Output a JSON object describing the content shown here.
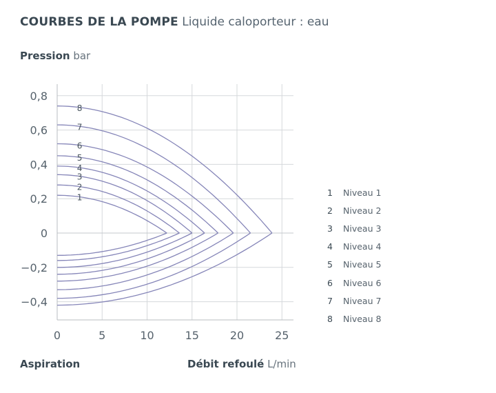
{
  "header": {
    "title_bold": "COURBES DE LA POMPE",
    "title_rest": "Liquide caloporteur : eau",
    "ylabel_bold": "Pression",
    "ylabel_unit": "bar",
    "aspiration": "Aspiration",
    "xlabel_bold": "Débit refoulé",
    "xlabel_unit": "L/min"
  },
  "legend": [
    {
      "num": "1",
      "label": "Niveau 1"
    },
    {
      "num": "2",
      "label": "Niveau 2"
    },
    {
      "num": "3",
      "label": "Niveau 3"
    },
    {
      "num": "4",
      "label": "Niveau 4"
    },
    {
      "num": "5",
      "label": "Niveau 5"
    },
    {
      "num": "6",
      "label": "Niveau 6"
    },
    {
      "num": "7",
      "label": "Niveau 7"
    },
    {
      "num": "8",
      "label": "Niveau 8"
    }
  ],
  "chart_data": {
    "type": "line",
    "title": "COURBES DE LA POMPE Liquide caloporteur : eau",
    "xlabel": "Débit refoulé L/min",
    "ylabel": "Pression bar",
    "xlim": [
      0,
      26
    ],
    "ylim": [
      -0.5,
      0.85
    ],
    "x_ticks": [
      0,
      5,
      10,
      15,
      20,
      25
    ],
    "x_tick_labels": [
      "0",
      "5",
      "10",
      "15",
      "20",
      "25"
    ],
    "y_ticks": [
      0.8,
      0.6,
      0.4,
      0.2,
      0,
      -0.2,
      -0.4
    ],
    "y_tick_labels": [
      "0,8",
      "0,6",
      "0,4",
      "0,2",
      "0",
      "−0,2",
      "−0,4"
    ],
    "grid": true,
    "legend_position": "right",
    "line_color": "#8585b8",
    "series": [
      {
        "name": "Niveau 1",
        "label": "1",
        "y0_refoule": 0.22,
        "y0_aspiration": -0.13,
        "x_zero": 12.2
      },
      {
        "name": "Niveau 2",
        "label": "2",
        "y0_refoule": 0.28,
        "y0_aspiration": -0.16,
        "x_zero": 13.6
      },
      {
        "name": "Niveau 3",
        "label": "3",
        "y0_refoule": 0.34,
        "y0_aspiration": -0.2,
        "x_zero": 15.0
      },
      {
        "name": "Niveau 4",
        "label": "4",
        "y0_refoule": 0.39,
        "y0_aspiration": -0.24,
        "x_zero": 16.4
      },
      {
        "name": "Niveau 5",
        "label": "5",
        "y0_refoule": 0.45,
        "y0_aspiration": -0.28,
        "x_zero": 17.9
      },
      {
        "name": "Niveau 6",
        "label": "6",
        "y0_refoule": 0.52,
        "y0_aspiration": -0.33,
        "x_zero": 19.6
      },
      {
        "name": "Niveau 7",
        "label": "7",
        "y0_refoule": 0.63,
        "y0_aspiration": -0.38,
        "x_zero": 21.5
      },
      {
        "name": "Niveau 8",
        "label": "8",
        "y0_refoule": 0.74,
        "y0_aspiration": -0.42,
        "x_zero": 23.9
      }
    ]
  }
}
